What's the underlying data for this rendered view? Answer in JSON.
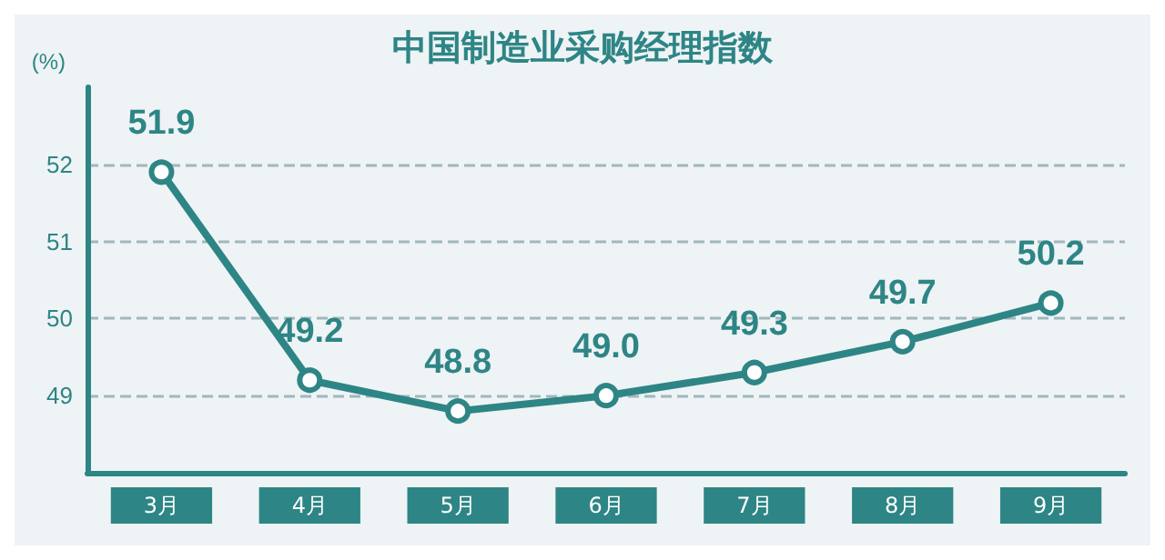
{
  "chart_data": {
    "type": "line",
    "title": "中国制造业采购经理指数",
    "ylabel": "(%)",
    "categories": [
      "3月",
      "4月",
      "5月",
      "6月",
      "7月",
      "8月",
      "9月"
    ],
    "series": [
      {
        "color": "#2e8585",
        "values": [
          51.9,
          49.2,
          48.8,
          49.0,
          49.3,
          49.7,
          50.2
        ]
      }
    ],
    "value_labels": [
      "51.9",
      "49.2",
      "48.8",
      "49.0",
      "49.3",
      "49.7",
      "50.2"
    ],
    "ylim": [
      48,
      53
    ],
    "yticks": [
      49,
      50,
      51,
      52
    ],
    "grid": "y",
    "marker": "circle",
    "line_style": "solid"
  }
}
